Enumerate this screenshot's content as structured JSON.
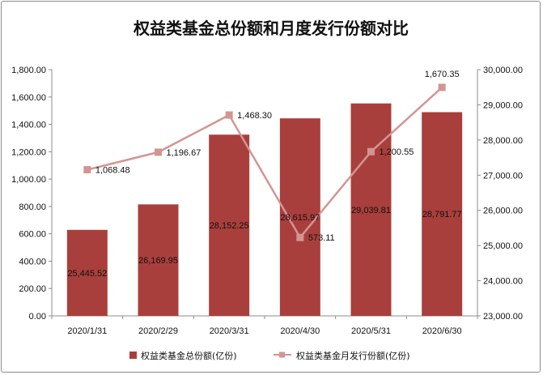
{
  "chart_data": {
    "type": "bar+line",
    "title": "权益类基金总份额和月度发行份额对比",
    "categories": [
      "2020/1/31",
      "2020/2/29",
      "2020/3/31",
      "2020/4/30",
      "2020/5/31",
      "2020/6/30"
    ],
    "series": [
      {
        "name": "权益类基金总份额(亿份)",
        "type": "bar",
        "axis": "right",
        "color": "#a93f3c",
        "values": [
          25445.52,
          26169.95,
          28152.25,
          28615.97,
          29039.81,
          28791.77
        ],
        "labels": [
          "25,445.52",
          "26,169.95",
          "28,152.25",
          "28,615.97",
          "29,039.81",
          "28,791.77"
        ]
      },
      {
        "name": "权益类基金月发行份额(亿份)",
        "type": "line",
        "axis": "left",
        "color": "#d39592",
        "values": [
          1068.48,
          1196.67,
          1468.3,
          573.11,
          1200.55,
          1670.35
        ],
        "labels": [
          "1,068.48",
          "1,196.67",
          "1,468.30",
          "573.11",
          "1,200.55",
          "1,670.35"
        ]
      }
    ],
    "y_left": {
      "ylim": [
        0,
        1800
      ],
      "ticks": [
        "0.00",
        "200.00",
        "400.00",
        "600.00",
        "800.00",
        "1,000.00",
        "1,200.00",
        "1,400.00",
        "1,600.00",
        "1,800.00"
      ]
    },
    "y_right": {
      "ylim": [
        23000,
        30000
      ],
      "ticks": [
        "23,000.00",
        "24,000.00",
        "25,000.00",
        "26,000.00",
        "27,000.00",
        "28,000.00",
        "29,000.00",
        "30,000.00"
      ]
    },
    "grid": false,
    "legend": "bottom"
  }
}
